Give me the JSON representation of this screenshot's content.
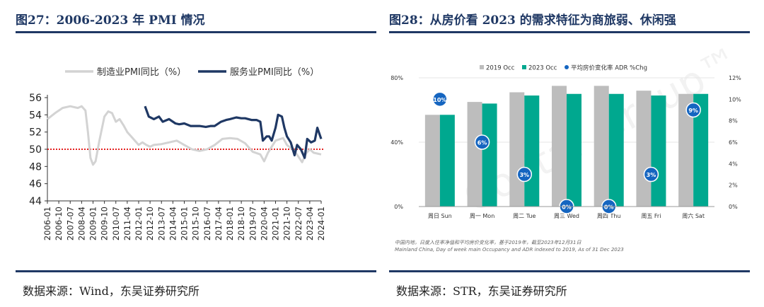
{
  "left_panel": {
    "title": "图27：2006-2023 年 PMI 情况",
    "source": "数据来源：Wind，东吴证券研究所"
  },
  "right_panel": {
    "title": "图28：从房价看 2023 的需求特征为商旅弱、休闲强",
    "source": "数据来源：STR，东吴证券研究所",
    "note_cn": "中国内地，日度入住率净值和平均房价变化率，基于2019年，截至2023年12月31日",
    "note_en": "Mainland China, Day of week main Occupancy and ADR indexed to 2019, As of 31 Dec 2023",
    "watermark": "CoStar Group™"
  },
  "chart_data": [
    {
      "type": "line",
      "title": "2006-2023 年 PMI 情况",
      "ylim": [
        44,
        56
      ],
      "yticks": [
        "44",
        "46",
        "48",
        "50",
        "52",
        "54",
        "56"
      ],
      "xlim": [
        "2006-01",
        "2024-01"
      ],
      "xticks": [
        "2006-01",
        "2006-10",
        "2007-07",
        "2008-04",
        "2009-01",
        "2009-10",
        "2010-07",
        "2011-04",
        "2012-01",
        "2012-10",
        "2013-07",
        "2014-04",
        "2015-01",
        "2015-10",
        "2016-07",
        "2017-04",
        "2018-01",
        "2018-10",
        "2019-07",
        "2020-04",
        "2021-01",
        "2021-10",
        "2022-07",
        "2023-04",
        "2024-01"
      ],
      "reference_line": {
        "value": 50,
        "style": "dotted",
        "color": "#e00000"
      },
      "series": [
        {
          "name": "制造业PMI同比（%）",
          "color": "#d3d3d3",
          "points": [
            [
              "2006-01",
              53.5
            ],
            [
              "2006-07",
              54.2
            ],
            [
              "2007-01",
              54.8
            ],
            [
              "2007-07",
              55.0
            ],
            [
              "2008-01",
              54.8
            ],
            [
              "2008-04",
              55.0
            ],
            [
              "2008-07",
              54.5
            ],
            [
              "2008-09",
              52.0
            ],
            [
              "2008-11",
              49.0
            ],
            [
              "2009-01",
              48.2
            ],
            [
              "2009-03",
              48.6
            ],
            [
              "2009-06",
              51.0
            ],
            [
              "2009-10",
              53.8
            ],
            [
              "2010-01",
              54.4
            ],
            [
              "2010-04",
              54.2
            ],
            [
              "2010-07",
              53.2
            ],
            [
              "2010-10",
              53.5
            ],
            [
              "2011-01",
              52.8
            ],
            [
              "2011-04",
              52.0
            ],
            [
              "2011-07",
              51.5
            ],
            [
              "2011-10",
              51.0
            ],
            [
              "2012-01",
              50.5
            ],
            [
              "2012-04",
              50.8
            ],
            [
              "2012-07",
              50.5
            ],
            [
              "2012-10",
              50.3
            ],
            [
              "2013-01",
              50.5
            ],
            [
              "2013-07",
              50.6
            ],
            [
              "2014-01",
              50.8
            ],
            [
              "2014-07",
              51.0
            ],
            [
              "2015-01",
              50.5
            ],
            [
              "2015-07",
              50.0
            ],
            [
              "2016-01",
              49.8
            ],
            [
              "2016-07",
              50.0
            ],
            [
              "2017-01",
              50.5
            ],
            [
              "2017-07",
              51.2
            ],
            [
              "2018-01",
              51.3
            ],
            [
              "2018-07",
              51.2
            ],
            [
              "2019-01",
              50.7
            ],
            [
              "2019-07",
              49.7
            ],
            [
              "2020-01",
              49.4
            ],
            [
              "2020-04",
              48.6
            ],
            [
              "2020-07",
              49.6
            ],
            [
              "2021-01",
              51.0
            ],
            [
              "2021-07",
              51.3
            ],
            [
              "2021-10",
              50.5
            ],
            [
              "2022-04",
              49.8
            ],
            [
              "2022-10",
              48.5
            ],
            [
              "2023-01",
              49.5
            ],
            [
              "2023-04",
              50.0
            ],
            [
              "2023-07",
              49.6
            ],
            [
              "2024-01",
              49.4
            ]
          ]
        },
        {
          "name": "服务业PMI同比（%）",
          "color": "#1f3864",
          "points": [
            [
              "2012-06",
              55.0
            ],
            [
              "2012-09",
              53.8
            ],
            [
              "2013-01",
              53.5
            ],
            [
              "2013-05",
              53.8
            ],
            [
              "2013-08",
              53.2
            ],
            [
              "2014-01",
              53.5
            ],
            [
              "2014-06",
              53.0
            ],
            [
              "2014-09",
              52.9
            ],
            [
              "2015-01",
              53.0
            ],
            [
              "2015-06",
              52.7
            ],
            [
              "2016-01",
              52.7
            ],
            [
              "2016-06",
              52.6
            ],
            [
              "2016-10",
              52.7
            ],
            [
              "2017-01",
              52.7
            ],
            [
              "2017-06",
              53.2
            ],
            [
              "2017-10",
              53.4
            ],
            [
              "2018-01",
              53.5
            ],
            [
              "2018-06",
              53.7
            ],
            [
              "2018-10",
              53.6
            ],
            [
              "2019-01",
              53.6
            ],
            [
              "2019-06",
              53.4
            ],
            [
              "2019-10",
              53.4
            ],
            [
              "2020-01",
              53.2
            ],
            [
              "2020-03",
              51.0
            ],
            [
              "2020-06",
              51.5
            ],
            [
              "2020-08",
              51.5
            ],
            [
              "2020-10",
              51.0
            ],
            [
              "2021-01",
              52.5
            ],
            [
              "2021-03",
              54.0
            ],
            [
              "2021-06",
              53.8
            ],
            [
              "2021-08",
              52.5
            ],
            [
              "2021-10",
              51.5
            ],
            [
              "2022-01",
              50.8
            ],
            [
              "2022-04",
              49.3
            ],
            [
              "2022-06",
              50.5
            ],
            [
              "2022-09",
              50.0
            ],
            [
              "2022-12",
              49.0
            ],
            [
              "2023-02",
              51.2
            ],
            [
              "2023-05",
              50.8
            ],
            [
              "2023-08",
              51.0
            ],
            [
              "2023-10",
              52.5
            ],
            [
              "2024-01",
              51.2
            ]
          ]
        }
      ]
    },
    {
      "type": "bar",
      "title": "从房价看 2023 的需求特征为商旅弱、休闲强",
      "categories": [
        "周日 Sun",
        "周一 Mon",
        "周二 Tue",
        "周三 Wed",
        "周四 Thu",
        "周五 Fri",
        "周六 Sat"
      ],
      "ylim": [
        0,
        80
      ],
      "yticks": [
        "0%",
        "40%",
        "80%"
      ],
      "y2lim": [
        0,
        12
      ],
      "y2ticks": [
        "0%",
        "2%",
        "4%",
        "6%",
        "8%",
        "10%",
        "12%"
      ],
      "series": [
        {
          "name": "2019 Occ",
          "color": "#bdbdbd",
          "values": [
            57,
            65,
            71,
            75,
            75,
            72,
            70
          ]
        },
        {
          "name": "2023 Occ",
          "color": "#00a88f",
          "values": [
            57,
            64,
            69,
            70,
            70,
            69,
            70
          ]
        },
        {
          "name": "平均房价变化率 ADR %Chg",
          "color": "#1565c0",
          "kind": "marker",
          "values": [
            10,
            6,
            3,
            0,
            0,
            3,
            9
          ],
          "labels": [
            "10%",
            "6%",
            "3%",
            "0%",
            "0%",
            "3%",
            "9%"
          ]
        }
      ]
    }
  ]
}
